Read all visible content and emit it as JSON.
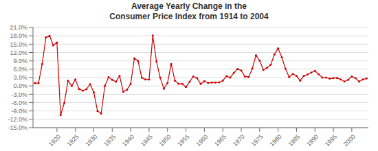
{
  "chart_data": {
    "type": "line",
    "title": "Average Yearly Change in the\nConsumer Price Index from 1914 to 2004",
    "x": [
      1914,
      1915,
      1916,
      1917,
      1918,
      1919,
      1920,
      1921,
      1922,
      1923,
      1924,
      1925,
      1926,
      1927,
      1928,
      1929,
      1930,
      1931,
      1932,
      1933,
      1934,
      1935,
      1936,
      1937,
      1938,
      1939,
      1940,
      1941,
      1942,
      1943,
      1944,
      1945,
      1946,
      1947,
      1948,
      1949,
      1950,
      1951,
      1952,
      1953,
      1954,
      1955,
      1956,
      1957,
      1958,
      1959,
      1960,
      1961,
      1962,
      1963,
      1964,
      1965,
      1966,
      1967,
      1968,
      1969,
      1970,
      1971,
      1972,
      1973,
      1974,
      1975,
      1976,
      1977,
      1978,
      1979,
      1980,
      1981,
      1982,
      1983,
      1984,
      1985,
      1986,
      1987,
      1988,
      1989,
      1990,
      1991,
      1992,
      1993,
      1994,
      1995,
      1996,
      1997,
      1998,
      1999,
      2000,
      2001,
      2002,
      2003,
      2004
    ],
    "values": [
      1.0,
      1.0,
      7.9,
      17.4,
      18.0,
      14.6,
      15.6,
      -10.5,
      -6.1,
      1.8,
      0.0,
      2.3,
      -1.1,
      -1.7,
      -1.2,
      0.6,
      -2.3,
      -9.0,
      -9.9,
      0.0,
      3.1,
      2.2,
      1.5,
      3.6,
      -2.1,
      -1.4,
      0.7,
      9.9,
      9.0,
      3.0,
      2.3,
      2.3,
      18.1,
      8.8,
      3.0,
      -1.0,
      1.0,
      7.9,
      1.9,
      0.8,
      0.7,
      -0.4,
      1.5,
      3.4,
      2.8,
      0.7,
      1.7,
      1.1,
      1.2,
      1.2,
      1.3,
      1.9,
      3.5,
      3.0,
      4.7,
      6.1,
      5.5,
      3.4,
      3.2,
      6.2,
      11.0,
      9.1,
      5.8,
      6.5,
      7.6,
      11.3,
      13.5,
      10.3,
      6.2,
      3.2,
      4.3,
      3.6,
      1.9,
      3.6,
      4.1,
      4.8,
      5.4,
      4.2,
      3.0,
      3.0,
      2.6,
      2.8,
      2.9,
      2.3,
      1.6,
      2.2,
      3.4,
      2.8,
      1.6,
      2.3,
      2.7
    ],
    "color": "#CC0000",
    "marker": "circle",
    "grid": true,
    "xlim": [
      1913.5,
      2004.5
    ],
    "xticks": [
      1920,
      1925,
      1930,
      1935,
      1940,
      1945,
      1950,
      1955,
      1960,
      1965,
      1970,
      1975,
      1980,
      1985,
      1990,
      1995,
      2000
    ],
    "ylim": [
      -15.0,
      21.0
    ],
    "yticks": [
      {
        "value": -15.0,
        "label": "-15.0%"
      },
      {
        "value": -12.0,
        "label": "-12.0%"
      },
      {
        "value": -9.0,
        "label": "-9.0%"
      },
      {
        "value": -6.0,
        "label": "-6.0%"
      },
      {
        "value": -3.0,
        "label": "-3.0%"
      },
      {
        "value": 0.0,
        "label": "0.0%"
      },
      {
        "value": 3.0,
        "label": "3.0%"
      },
      {
        "value": 6.0,
        "label": "6.0%"
      },
      {
        "value": 9.0,
        "label": "9.0%"
      },
      {
        "value": 12.0,
        "label": "12.0%"
      },
      {
        "value": 15.0,
        "label": "15.0%"
      },
      {
        "value": 18.0,
        "label": "18.0%"
      },
      {
        "value": 21.0,
        "label": "21.0%"
      }
    ]
  }
}
